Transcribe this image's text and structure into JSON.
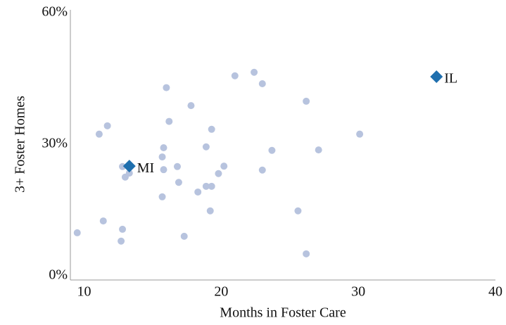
{
  "chart_data": {
    "type": "scatter",
    "x_label": "Months in Foster Care",
    "y_label": "3+ Foster Homes",
    "xlim": [
      9,
      40
    ],
    "xticks": [
      10,
      20,
      30,
      40
    ],
    "ylim": [
      0,
      60
    ],
    "yticks": [
      {
        "value": 0,
        "label": "0%"
      },
      {
        "value": 30,
        "label": "30%"
      },
      {
        "value": 60,
        "label": "60%"
      }
    ],
    "grid": false,
    "series": [
      {
        "color": "#b7c3de",
        "marker": "circle",
        "x": [
          9.5,
          11.1,
          11.7,
          11.4,
          12.8,
          12.7,
          12.8,
          13.0,
          13.3,
          16.0,
          16.2,
          15.7,
          15.8,
          15.8,
          15.7,
          16.8,
          16.9,
          17.3,
          17.8,
          18.3,
          18.9,
          18.9,
          19.3,
          19.3,
          19.2,
          19.8,
          20.2,
          21.0,
          22.4,
          23.0,
          23.0,
          23.7,
          25.6,
          26.2,
          26.2,
          27.1,
          30.1
        ],
        "values": [
          9.8,
          32.3,
          34.2,
          12.5,
          10.6,
          7.9,
          24.9,
          22.5,
          23.4,
          42.9,
          35.2,
          27.1,
          29.2,
          24.2,
          18.0,
          24.9,
          21.3,
          9.0,
          38.8,
          19.1,
          29.4,
          20.4,
          20.4,
          33.4,
          14.8,
          23.3,
          25.0,
          45.6,
          46.4,
          43.8,
          24.1,
          28.6,
          14.8,
          39.8,
          5.0,
          28.7,
          32.3
        ]
      },
      {
        "color": "#1f6fae",
        "marker": "diamond",
        "x": [
          13.3,
          35.7
        ],
        "values": [
          25.0,
          45.4
        ],
        "labels": [
          "MI",
          "IL"
        ]
      }
    ]
  }
}
